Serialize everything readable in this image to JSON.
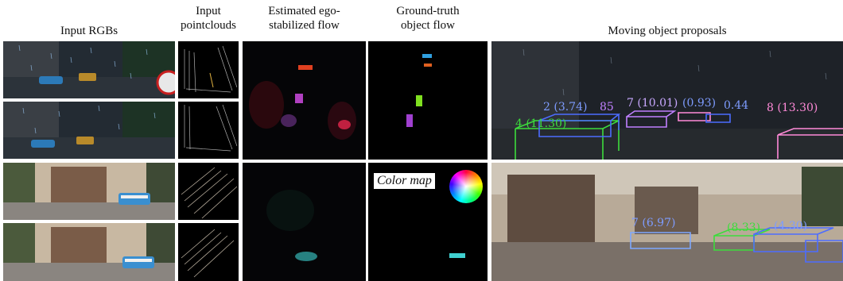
{
  "headers": {
    "input_rgbs": "Input RGBs",
    "input_pointclouds_line1": "Input",
    "input_pointclouds_line2": "pointclouds",
    "flow_line1": "Estimated ego-",
    "flow_line2": "stabilized flow",
    "gt_line1": "Ground-truth",
    "gt_line2": "object flow",
    "proposals": "Moving object proposals"
  },
  "color_map_label": "Color map",
  "proposal_labels_top": [
    "2 (3.74)",
    "85",
    "7 (10.01)",
    "(0.93)",
    "0.44",
    "8 (13.30)",
    "4 (11.30)"
  ],
  "proposal_labels_bottom": [
    "7 (6.97)",
    "(8.33)",
    "(4.30)"
  ],
  "colors": {
    "box_green": "#3cdc3c",
    "box_blue": "#4c6cff",
    "box_violet": "#c080ff",
    "box_pink": "#ff8ad8",
    "box_light_blue": "#7ea8ff"
  }
}
